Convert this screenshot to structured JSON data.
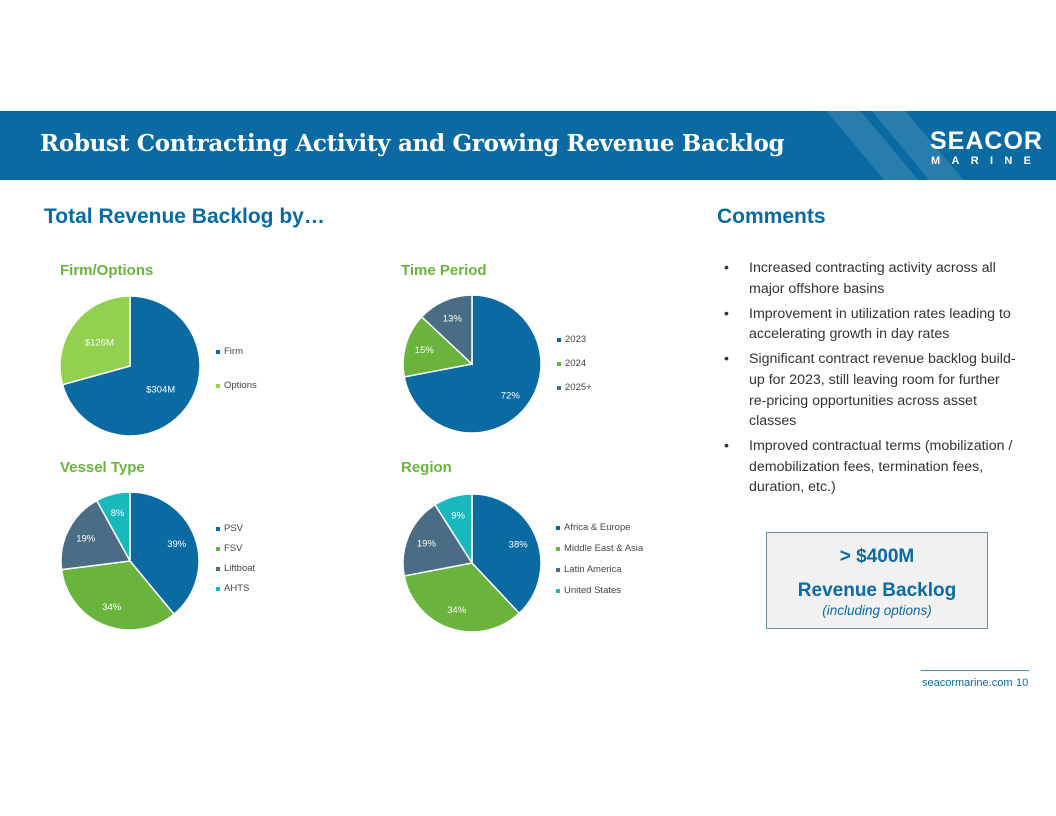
{
  "header": {
    "title": "Robust Contracting Activity and Growing Revenue Backlog",
    "logo_top": "SEACOR",
    "logo_bottom": [
      "M",
      "A",
      "R",
      "I",
      "N",
      "E"
    ]
  },
  "left_heading": "Total Revenue Backlog by…",
  "right_heading": "Comments",
  "comments": [
    "Increased contracting activity across all major offshore basins",
    "Improvement in utilization rates leading to accelerating growth in day rates",
    "Significant contract revenue backlog build-up for 2023, still leaving room for further re-pricing opportunities across asset classes",
    "Improved contractual terms (mobilization / demobilization fees, termination fees, duration, etc.)"
  ],
  "callout": {
    "line1": "> $400M",
    "line2": "Revenue Backlog",
    "line3": "(including options)"
  },
  "footer": {
    "site": "seacormarine.com",
    "page": "10"
  },
  "colors": {
    "blue": "#0a6aa1",
    "green": "#6ab43e",
    "light_green": "#92d050",
    "slate": "#4a6d85",
    "teal": "#18b8bd"
  },
  "chart_data": [
    {
      "id": "firm",
      "type": "pie",
      "title": "Firm/Options",
      "categories": [
        "Firm",
        "Options"
      ],
      "values": [
        304,
        126
      ],
      "labels": [
        "$304M",
        "$126M"
      ],
      "colors": [
        "#0a6aa1",
        "#92d050"
      ]
    },
    {
      "id": "time",
      "type": "pie",
      "title": "Time Period",
      "categories": [
        "2023",
        "2024",
        "2025+"
      ],
      "values": [
        72,
        15,
        13
      ],
      "labels": [
        "72%",
        "15%",
        "13%"
      ],
      "colors": [
        "#0a6aa1",
        "#6ab43e",
        "#4a6d85"
      ]
    },
    {
      "id": "vessel",
      "type": "pie",
      "title": "Vessel Type",
      "categories": [
        "PSV",
        "FSV",
        "Liftboat",
        "AHTS"
      ],
      "values": [
        39,
        34,
        19,
        8
      ],
      "labels": [
        "39%",
        "34%",
        "19%",
        "8%"
      ],
      "colors": [
        "#0a6aa1",
        "#6ab43e",
        "#4a6d85",
        "#18b8bd"
      ]
    },
    {
      "id": "region",
      "type": "pie",
      "title": "Region",
      "categories": [
        "Africa & Europe",
        "Middle East & Asia",
        "Latin America",
        "United States"
      ],
      "values": [
        38,
        34,
        19,
        9
      ],
      "labels": [
        "38%",
        "34%",
        "19%",
        "9%"
      ],
      "colors": [
        "#0a6aa1",
        "#6ab43e",
        "#4a6d85",
        "#18b8bd"
      ]
    }
  ]
}
